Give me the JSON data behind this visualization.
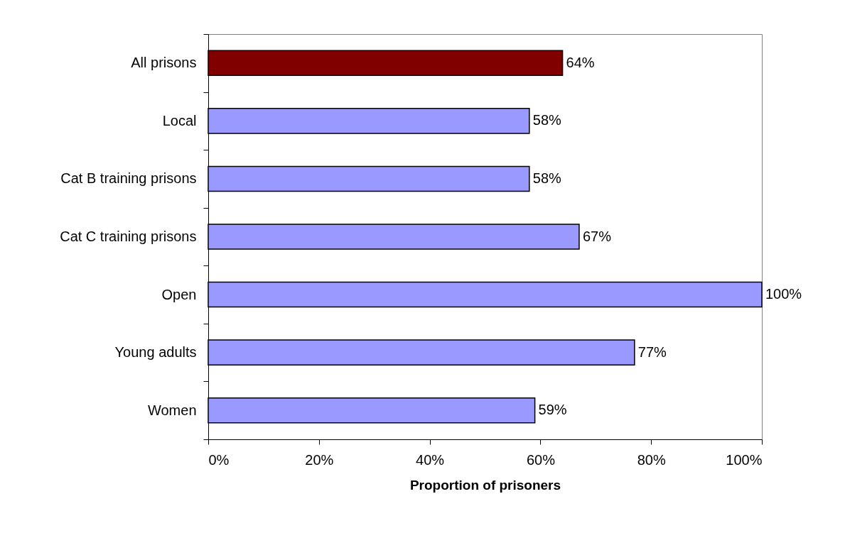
{
  "chart_data": {
    "type": "bar",
    "orientation": "horizontal",
    "categories": [
      "All prisons",
      "Local",
      "Cat B training prisons",
      "Cat C training prisons",
      "Open",
      "Young adults",
      "Women"
    ],
    "values": [
      64,
      58,
      58,
      67,
      100,
      77,
      59
    ],
    "colors": [
      "#800000",
      "#9999ff",
      "#9999ff",
      "#9999ff",
      "#9999ff",
      "#9999ff",
      "#9999ff"
    ],
    "value_labels": [
      "64%",
      "58%",
      "58%",
      "67%",
      "100%",
      "77%",
      "59%"
    ],
    "xlabel": "Proportion of prisoners",
    "xlim": [
      0,
      100
    ],
    "xticks": [
      {
        "value": 0,
        "label": "0%"
      },
      {
        "value": 20,
        "label": "20%"
      },
      {
        "value": 40,
        "label": "40%"
      },
      {
        "value": 60,
        "label": "60%"
      },
      {
        "value": 80,
        "label": "80%"
      },
      {
        "value": 100,
        "label": "100%"
      }
    ],
    "grid": false
  }
}
